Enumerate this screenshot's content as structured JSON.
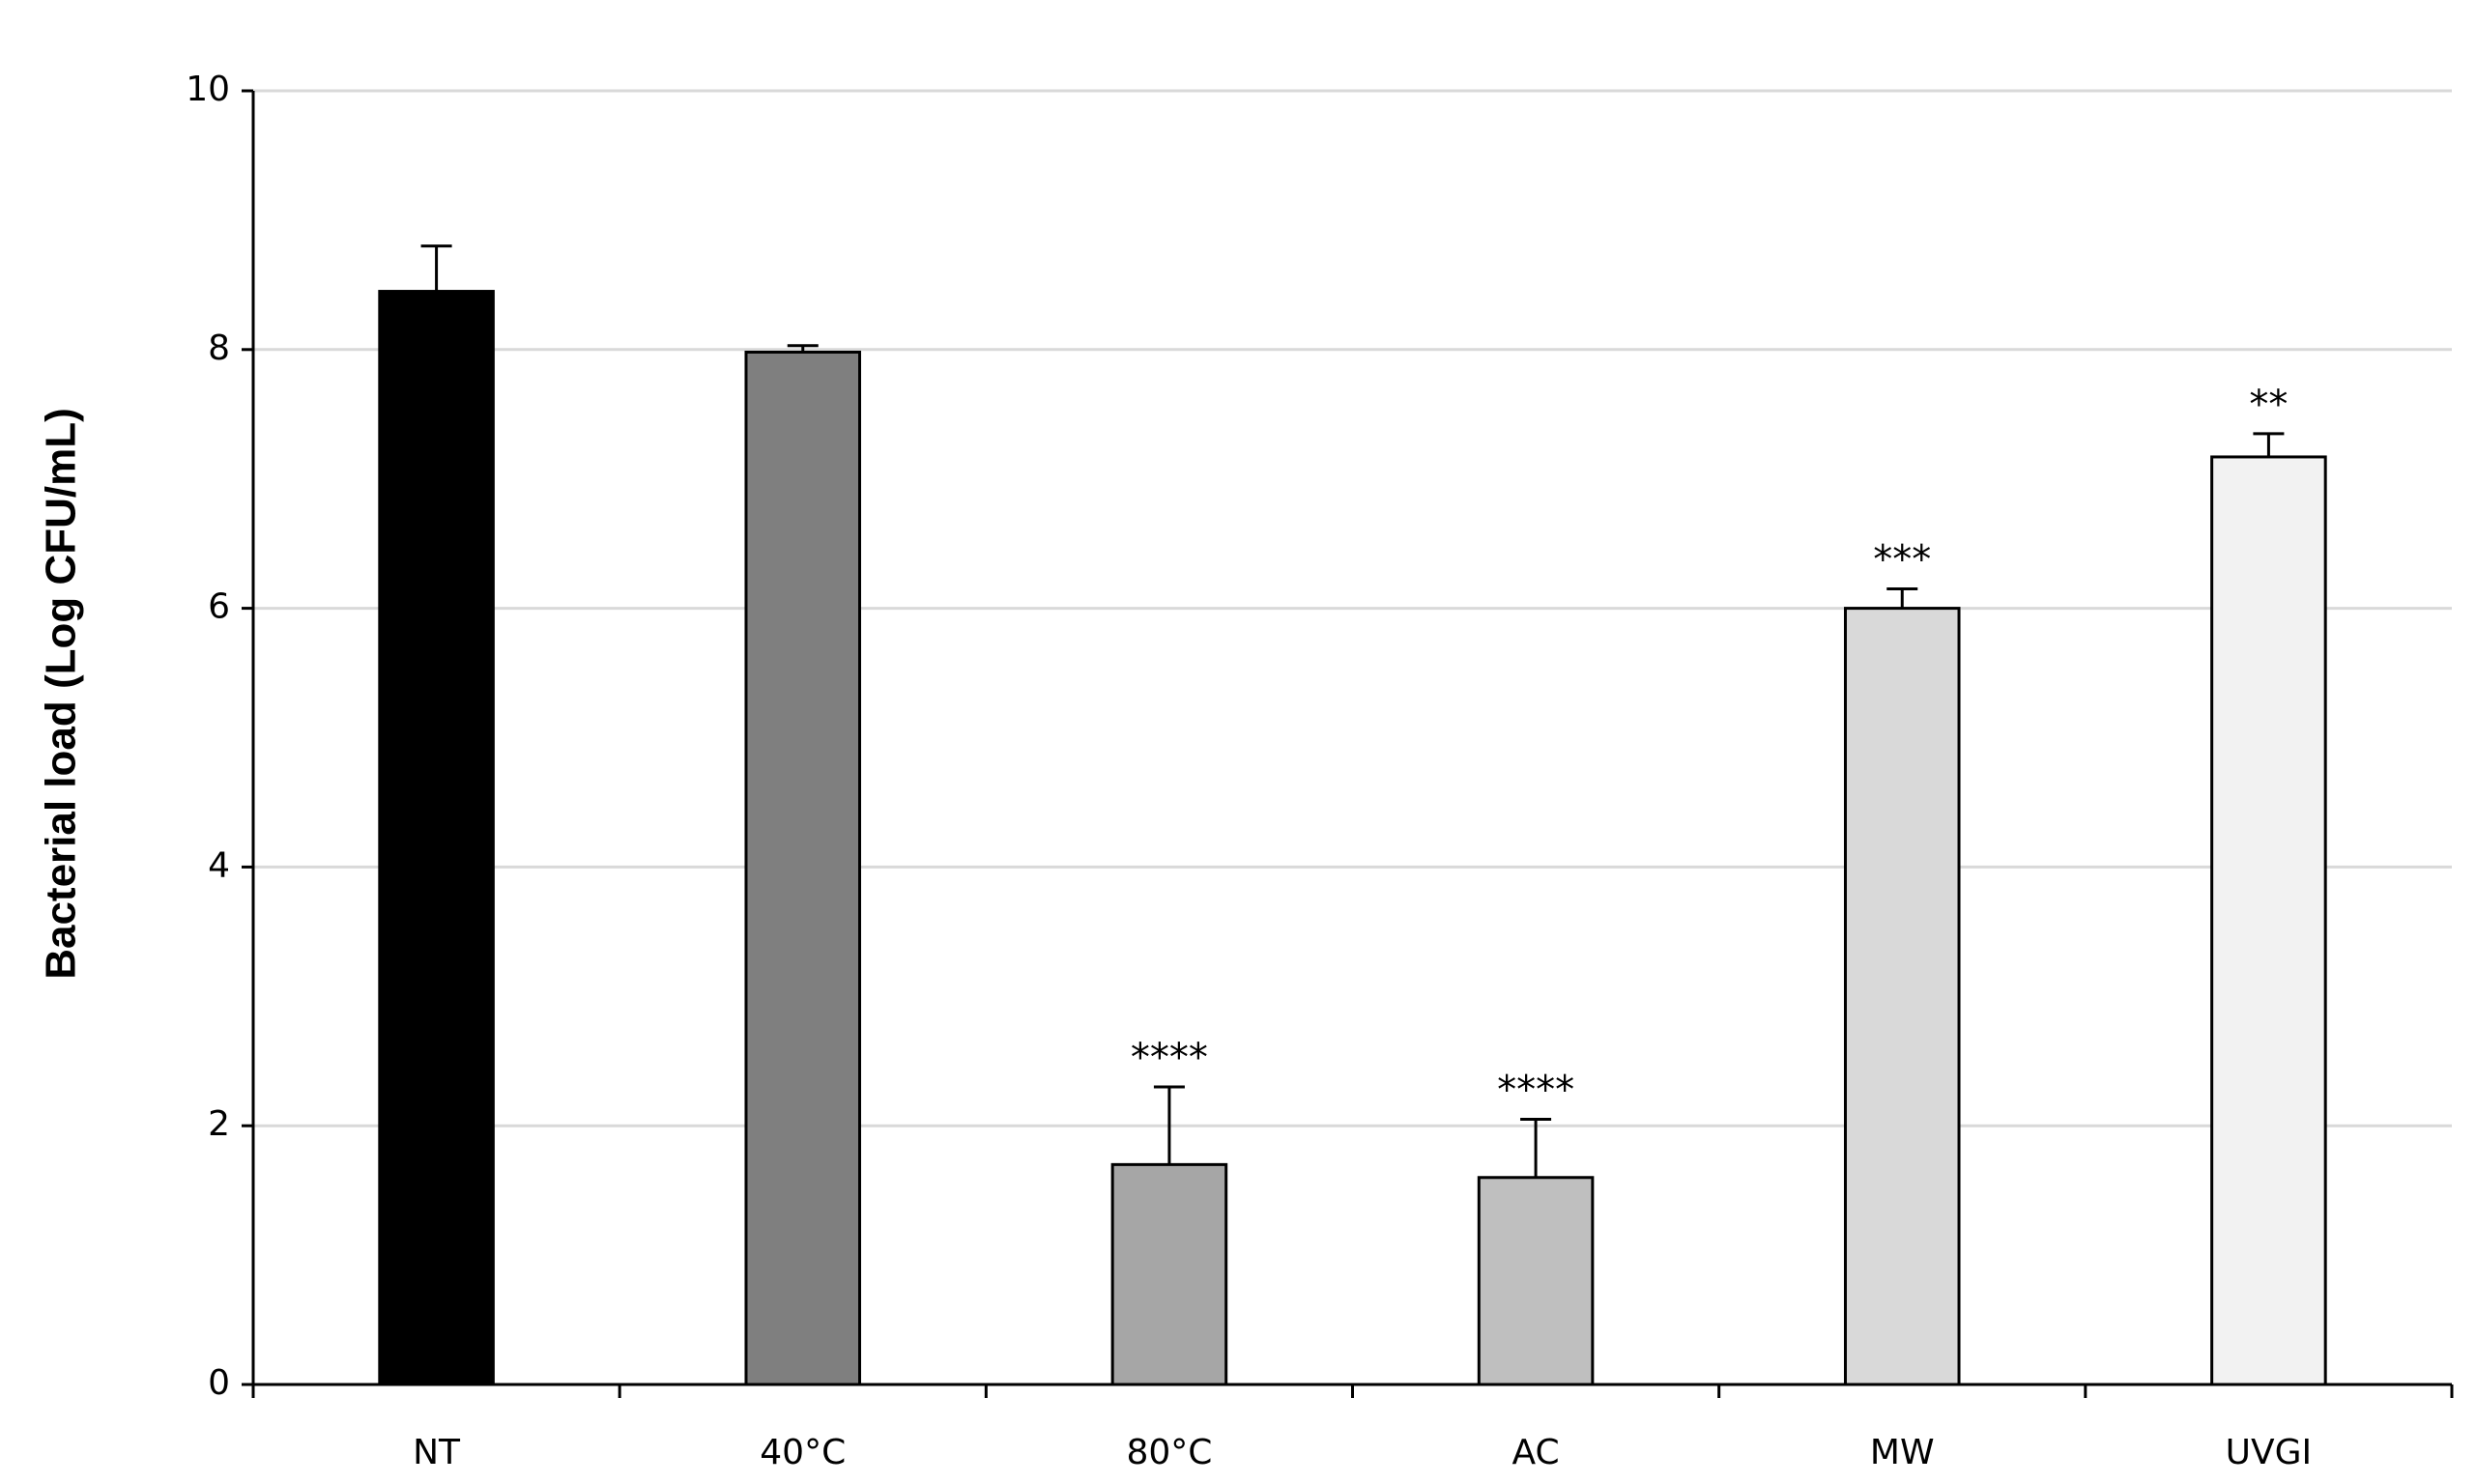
{
  "chart_data": {
    "type": "bar",
    "y_label": "Bacterial load (Log CFU/mL)",
    "categories": [
      "NT",
      "40°C",
      "80°C",
      "AC",
      "MW",
      "UVGI"
    ],
    "values": [
      8.45,
      7.98,
      1.7,
      1.6,
      6.0,
      7.17
    ],
    "errors": [
      0.35,
      0.05,
      0.6,
      0.45,
      0.15,
      0.18
    ],
    "annotations": [
      null,
      null,
      "****",
      "****",
      "***",
      "**"
    ],
    "colors": [
      "#000000",
      "#7f7f7f",
      "#a6a6a6",
      "#bfbfbf",
      "#d9d9d9",
      "#f2f2f2"
    ],
    "ylim": [
      0,
      10
    ],
    "yticks": [
      0,
      2,
      4,
      6,
      8,
      10
    ],
    "grid": true
  }
}
